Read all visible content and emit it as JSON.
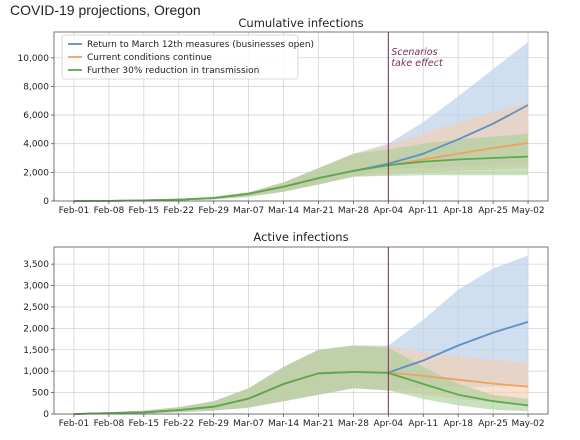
{
  "title": "COVID-19 projections, Oregon",
  "colors": {
    "blue": "#5b8fc7",
    "orange": "#f0a15e",
    "green": "#5aa94f",
    "vline": "#7a2e55",
    "blue_band": "#bcd3ea",
    "orange_band": "#f4cdb0",
    "green_band": "#a8cf98",
    "grid": "#d4d4d4"
  },
  "chart_data": [
    {
      "type": "line",
      "title": "Cumulative infections",
      "x_ticks": [
        "Feb-01",
        "Feb-08",
        "Feb-15",
        "Feb-22",
        "Feb-29",
        "Mar-07",
        "Mar-14",
        "Mar-21",
        "Mar-28",
        "Apr-04",
        "Apr-11",
        "Apr-18",
        "Apr-25",
        "May-02"
      ],
      "ylim": [
        0,
        11800
      ],
      "y_ticks": [
        0,
        2000,
        4000,
        6000,
        8000,
        10000
      ],
      "y_tick_labels": [
        "0",
        "2,000",
        "4,000",
        "6,000",
        "8,000",
        "10,000"
      ],
      "grid": true,
      "legend": "top-left",
      "annotation": {
        "text_lines": [
          "Scenarios",
          "take effect"
        ],
        "x_day": 63
      },
      "x_days": [
        0,
        7,
        14,
        21,
        28,
        35,
        42,
        49,
        56,
        63,
        70,
        77,
        84,
        91
      ],
      "series": [
        {
          "name": "Return to March 12th measures (businesses open)",
          "color_key": "blue",
          "values": [
            0,
            10,
            40,
            100,
            200,
            500,
            1000,
            1600,
            2100,
            2600,
            3300,
            4300,
            5400,
            6700
          ],
          "lower": [
            0,
            0,
            10,
            40,
            120,
            300,
            650,
            1150,
            1700,
            2200,
            2300,
            2400,
            2500,
            2600
          ],
          "upper": [
            0,
            30,
            80,
            150,
            300,
            600,
            1300,
            2300,
            3300,
            4000,
            5500,
            7300,
            9200,
            11100
          ]
        },
        {
          "name": "Current conditions continue",
          "color_key": "orange",
          "values": [
            0,
            10,
            40,
            100,
            200,
            500,
            1000,
            1600,
            2100,
            2500,
            2900,
            3300,
            3700,
            4050
          ],
          "lower": [
            0,
            0,
            10,
            40,
            120,
            300,
            650,
            1150,
            1700,
            1850,
            2000,
            2100,
            2200,
            2300
          ],
          "upper": [
            0,
            30,
            80,
            150,
            300,
            600,
            1300,
            2300,
            3300,
            3900,
            4700,
            5500,
            6200,
            6900
          ]
        },
        {
          "name": "Further 30% reduction in transmission",
          "color_key": "green",
          "values": [
            0,
            10,
            40,
            100,
            200,
            500,
            1000,
            1600,
            2100,
            2500,
            2750,
            2900,
            3000,
            3100
          ],
          "lower": [
            0,
            0,
            10,
            40,
            120,
            300,
            650,
            1150,
            1700,
            1750,
            1800,
            1800,
            1800,
            1800
          ],
          "upper": [
            0,
            30,
            80,
            150,
            300,
            600,
            1300,
            2300,
            3300,
            3600,
            4000,
            4300,
            4500,
            4700
          ]
        }
      ]
    },
    {
      "type": "line",
      "title": "Active infections",
      "x_ticks": [
        "Feb-01",
        "Feb-08",
        "Feb-15",
        "Feb-22",
        "Feb-29",
        "Mar-07",
        "Mar-14",
        "Mar-21",
        "Mar-28",
        "Apr-04",
        "Apr-11",
        "Apr-18",
        "Apr-25",
        "May-02"
      ],
      "ylim": [
        0,
        3900
      ],
      "y_ticks": [
        0,
        500,
        1000,
        1500,
        2000,
        2500,
        3000,
        3500
      ],
      "y_tick_labels": [
        "0",
        "500",
        "1,000",
        "1,500",
        "2,000",
        "2,500",
        "3,000",
        "3,500"
      ],
      "grid": true,
      "annotation": {
        "x_day": 63
      },
      "x_days": [
        0,
        7,
        14,
        21,
        28,
        35,
        42,
        49,
        56,
        63,
        70,
        77,
        84,
        91
      ],
      "series": [
        {
          "name": "Return to March 12th measures (businesses open)",
          "color_key": "blue",
          "values": [
            0,
            20,
            40,
            90,
            170,
            360,
            700,
            950,
            980,
            970,
            1250,
            1600,
            1900,
            2150
          ],
          "lower": [
            0,
            0,
            10,
            40,
            80,
            150,
            300,
            450,
            600,
            550,
            600,
            620,
            640,
            650
          ],
          "upper": [
            0,
            40,
            80,
            160,
            300,
            600,
            1100,
            1500,
            1600,
            1600,
            2200,
            2900,
            3400,
            3700
          ]
        },
        {
          "name": "Current conditions continue",
          "color_key": "orange",
          "values": [
            0,
            20,
            40,
            90,
            170,
            360,
            700,
            950,
            980,
            970,
            890,
            800,
            710,
            640
          ],
          "lower": [
            0,
            0,
            10,
            40,
            80,
            150,
            300,
            450,
            600,
            550,
            450,
            350,
            280,
            200
          ],
          "upper": [
            0,
            40,
            80,
            160,
            300,
            600,
            1100,
            1500,
            1600,
            1580,
            1450,
            1350,
            1260,
            1200
          ]
        },
        {
          "name": "Further 30% reduction in transmission",
          "color_key": "green",
          "values": [
            0,
            20,
            40,
            90,
            170,
            360,
            700,
            950,
            980,
            960,
            700,
            450,
            300,
            200
          ],
          "lower": [
            0,
            0,
            10,
            40,
            80,
            150,
            300,
            450,
            600,
            550,
            350,
            200,
            100,
            60
          ],
          "upper": [
            0,
            40,
            80,
            160,
            300,
            600,
            1100,
            1500,
            1600,
            1550,
            1100,
            700,
            450,
            350
          ]
        }
      ]
    }
  ]
}
